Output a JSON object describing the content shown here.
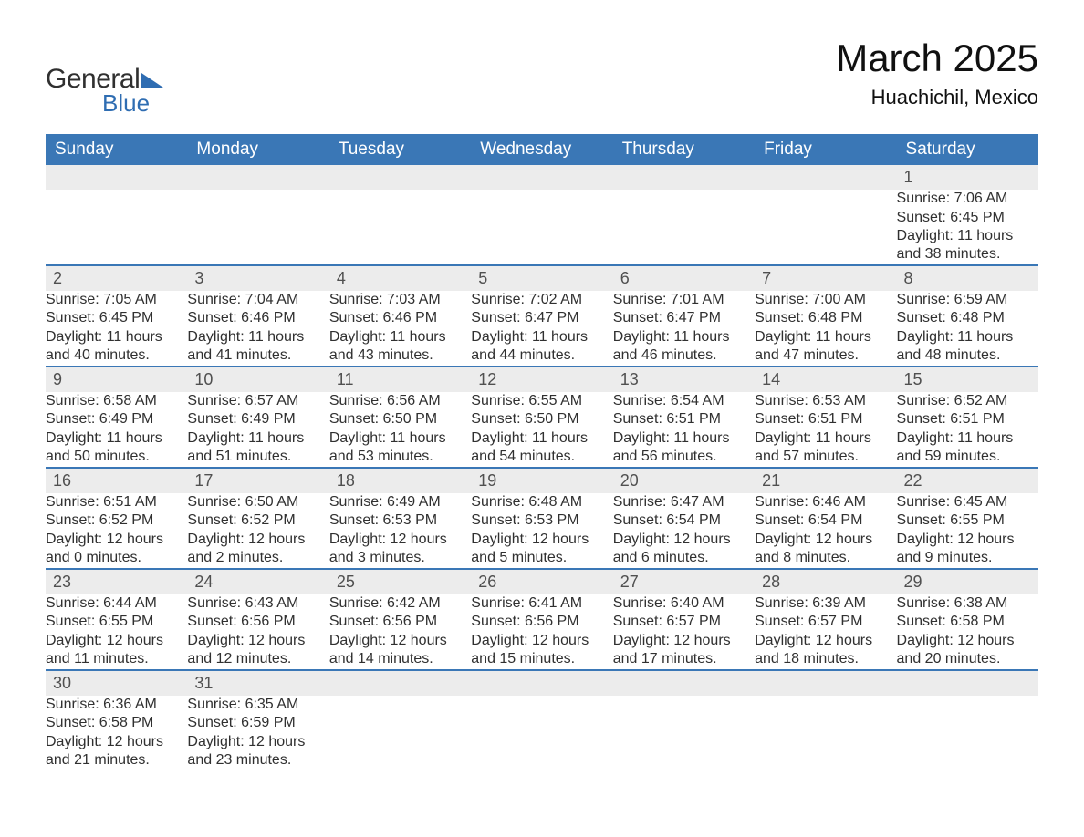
{
  "brand": {
    "word1": "General",
    "word2": "Blue",
    "brand_color": "#2f6db2"
  },
  "header": {
    "title": "March 2025",
    "location": "Huachichil, Mexico"
  },
  "colors": {
    "header_bg": "#3a77b6",
    "header_fg": "#ffffff",
    "row_border": "#3a77b6",
    "daynum_bg": "#ececec",
    "text": "#303030"
  },
  "weekdays": [
    "Sunday",
    "Monday",
    "Tuesday",
    "Wednesday",
    "Thursday",
    "Friday",
    "Saturday"
  ],
  "weeks": [
    [
      null,
      null,
      null,
      null,
      null,
      null,
      {
        "n": "1",
        "sunrise": "Sunrise: 7:06 AM",
        "sunset": "Sunset: 6:45 PM",
        "day1": "Daylight: 11 hours",
        "day2": "and 38 minutes."
      }
    ],
    [
      {
        "n": "2",
        "sunrise": "Sunrise: 7:05 AM",
        "sunset": "Sunset: 6:45 PM",
        "day1": "Daylight: 11 hours",
        "day2": "and 40 minutes."
      },
      {
        "n": "3",
        "sunrise": "Sunrise: 7:04 AM",
        "sunset": "Sunset: 6:46 PM",
        "day1": "Daylight: 11 hours",
        "day2": "and 41 minutes."
      },
      {
        "n": "4",
        "sunrise": "Sunrise: 7:03 AM",
        "sunset": "Sunset: 6:46 PM",
        "day1": "Daylight: 11 hours",
        "day2": "and 43 minutes."
      },
      {
        "n": "5",
        "sunrise": "Sunrise: 7:02 AM",
        "sunset": "Sunset: 6:47 PM",
        "day1": "Daylight: 11 hours",
        "day2": "and 44 minutes."
      },
      {
        "n": "6",
        "sunrise": "Sunrise: 7:01 AM",
        "sunset": "Sunset: 6:47 PM",
        "day1": "Daylight: 11 hours",
        "day2": "and 46 minutes."
      },
      {
        "n": "7",
        "sunrise": "Sunrise: 7:00 AM",
        "sunset": "Sunset: 6:48 PM",
        "day1": "Daylight: 11 hours",
        "day2": "and 47 minutes."
      },
      {
        "n": "8",
        "sunrise": "Sunrise: 6:59 AM",
        "sunset": "Sunset: 6:48 PM",
        "day1": "Daylight: 11 hours",
        "day2": "and 48 minutes."
      }
    ],
    [
      {
        "n": "9",
        "sunrise": "Sunrise: 6:58 AM",
        "sunset": "Sunset: 6:49 PM",
        "day1": "Daylight: 11 hours",
        "day2": "and 50 minutes."
      },
      {
        "n": "10",
        "sunrise": "Sunrise: 6:57 AM",
        "sunset": "Sunset: 6:49 PM",
        "day1": "Daylight: 11 hours",
        "day2": "and 51 minutes."
      },
      {
        "n": "11",
        "sunrise": "Sunrise: 6:56 AM",
        "sunset": "Sunset: 6:50 PM",
        "day1": "Daylight: 11 hours",
        "day2": "and 53 minutes."
      },
      {
        "n": "12",
        "sunrise": "Sunrise: 6:55 AM",
        "sunset": "Sunset: 6:50 PM",
        "day1": "Daylight: 11 hours",
        "day2": "and 54 minutes."
      },
      {
        "n": "13",
        "sunrise": "Sunrise: 6:54 AM",
        "sunset": "Sunset: 6:51 PM",
        "day1": "Daylight: 11 hours",
        "day2": "and 56 minutes."
      },
      {
        "n": "14",
        "sunrise": "Sunrise: 6:53 AM",
        "sunset": "Sunset: 6:51 PM",
        "day1": "Daylight: 11 hours",
        "day2": "and 57 minutes."
      },
      {
        "n": "15",
        "sunrise": "Sunrise: 6:52 AM",
        "sunset": "Sunset: 6:51 PM",
        "day1": "Daylight: 11 hours",
        "day2": "and 59 minutes."
      }
    ],
    [
      {
        "n": "16",
        "sunrise": "Sunrise: 6:51 AM",
        "sunset": "Sunset: 6:52 PM",
        "day1": "Daylight: 12 hours",
        "day2": "and 0 minutes."
      },
      {
        "n": "17",
        "sunrise": "Sunrise: 6:50 AM",
        "sunset": "Sunset: 6:52 PM",
        "day1": "Daylight: 12 hours",
        "day2": "and 2 minutes."
      },
      {
        "n": "18",
        "sunrise": "Sunrise: 6:49 AM",
        "sunset": "Sunset: 6:53 PM",
        "day1": "Daylight: 12 hours",
        "day2": "and 3 minutes."
      },
      {
        "n": "19",
        "sunrise": "Sunrise: 6:48 AM",
        "sunset": "Sunset: 6:53 PM",
        "day1": "Daylight: 12 hours",
        "day2": "and 5 minutes."
      },
      {
        "n": "20",
        "sunrise": "Sunrise: 6:47 AM",
        "sunset": "Sunset: 6:54 PM",
        "day1": "Daylight: 12 hours",
        "day2": "and 6 minutes."
      },
      {
        "n": "21",
        "sunrise": "Sunrise: 6:46 AM",
        "sunset": "Sunset: 6:54 PM",
        "day1": "Daylight: 12 hours",
        "day2": "and 8 minutes."
      },
      {
        "n": "22",
        "sunrise": "Sunrise: 6:45 AM",
        "sunset": "Sunset: 6:55 PM",
        "day1": "Daylight: 12 hours",
        "day2": "and 9 minutes."
      }
    ],
    [
      {
        "n": "23",
        "sunrise": "Sunrise: 6:44 AM",
        "sunset": "Sunset: 6:55 PM",
        "day1": "Daylight: 12 hours",
        "day2": "and 11 minutes."
      },
      {
        "n": "24",
        "sunrise": "Sunrise: 6:43 AM",
        "sunset": "Sunset: 6:56 PM",
        "day1": "Daylight: 12 hours",
        "day2": "and 12 minutes."
      },
      {
        "n": "25",
        "sunrise": "Sunrise: 6:42 AM",
        "sunset": "Sunset: 6:56 PM",
        "day1": "Daylight: 12 hours",
        "day2": "and 14 minutes."
      },
      {
        "n": "26",
        "sunrise": "Sunrise: 6:41 AM",
        "sunset": "Sunset: 6:56 PM",
        "day1": "Daylight: 12 hours",
        "day2": "and 15 minutes."
      },
      {
        "n": "27",
        "sunrise": "Sunrise: 6:40 AM",
        "sunset": "Sunset: 6:57 PM",
        "day1": "Daylight: 12 hours",
        "day2": "and 17 minutes."
      },
      {
        "n": "28",
        "sunrise": "Sunrise: 6:39 AM",
        "sunset": "Sunset: 6:57 PM",
        "day1": "Daylight: 12 hours",
        "day2": "and 18 minutes."
      },
      {
        "n": "29",
        "sunrise": "Sunrise: 6:38 AM",
        "sunset": "Sunset: 6:58 PM",
        "day1": "Daylight: 12 hours",
        "day2": "and 20 minutes."
      }
    ],
    [
      {
        "n": "30",
        "sunrise": "Sunrise: 6:36 AM",
        "sunset": "Sunset: 6:58 PM",
        "day1": "Daylight: 12 hours",
        "day2": "and 21 minutes."
      },
      {
        "n": "31",
        "sunrise": "Sunrise: 6:35 AM",
        "sunset": "Sunset: 6:59 PM",
        "day1": "Daylight: 12 hours",
        "day2": "and 23 minutes."
      },
      null,
      null,
      null,
      null,
      null
    ]
  ]
}
